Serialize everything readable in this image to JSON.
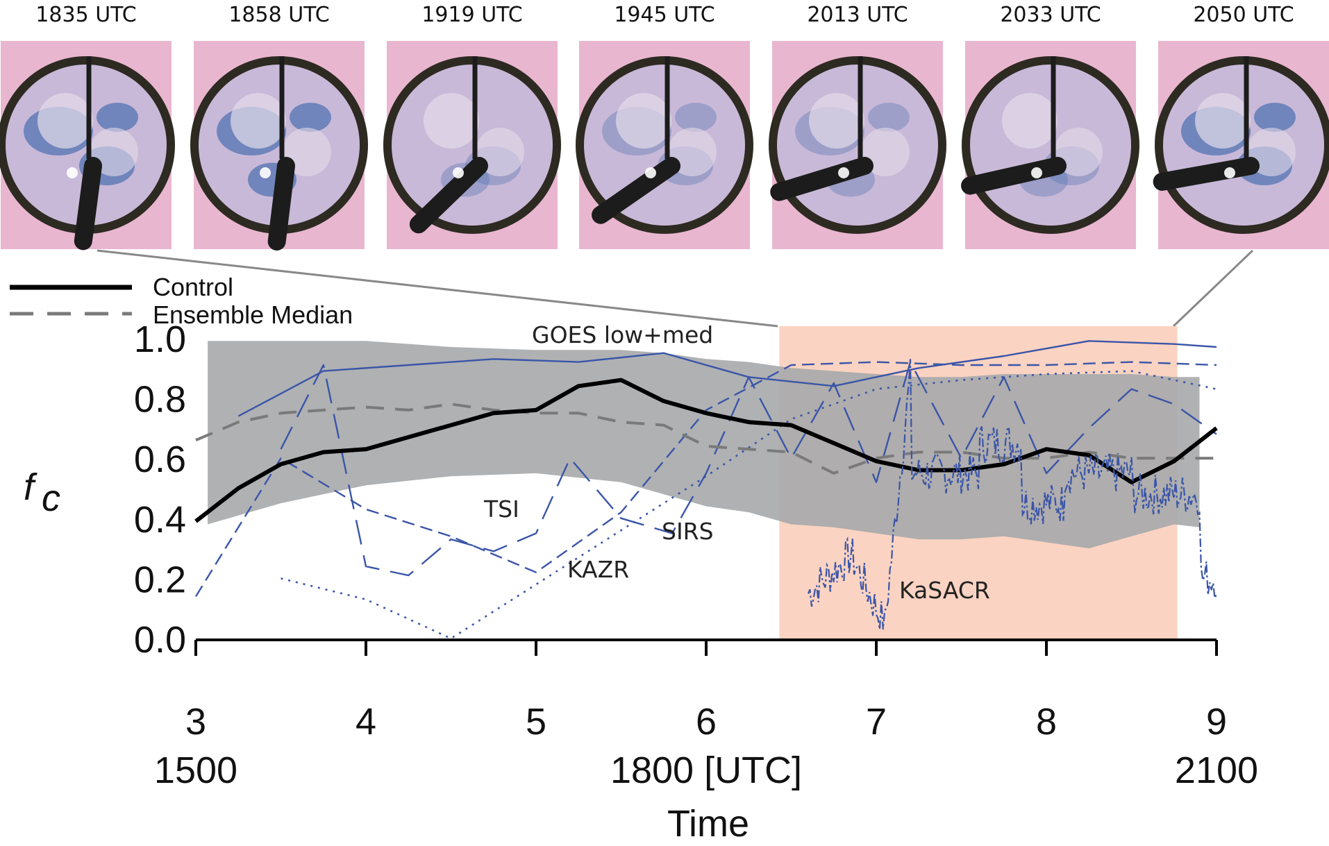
{
  "thumbnails": {
    "labels": [
      "1835 UTC",
      "1858 UTC",
      "1919 UTC",
      "1945 UTC",
      "2013 UTC",
      "2033 UTC",
      "2050 UTC"
    ],
    "colors": {
      "frame": "#e9b6cf",
      "ring": "#2d2a22",
      "sky": "#c9b9d8",
      "sky_blue": "#4a6fb0",
      "cloud": "#e4dbe9",
      "arm": "#1c1c1c"
    }
  },
  "legend": {
    "control_label": "Control",
    "median_label": "Ensemble Median"
  },
  "series_labels": {
    "goes": "GOES low+med",
    "tsi": "TSI",
    "sirs": "SIRS",
    "kazr": "KAZR",
    "kasacr": "KaSACR"
  },
  "colors": {
    "control": "#000000",
    "median": "#7a7a7a",
    "envelope": "#a6a8ab",
    "observations": "#3a55a8",
    "highlight": "#fbd3c2",
    "connector": "#888888"
  },
  "chart_data": {
    "type": "line",
    "title": "",
    "ylabel_main": "f",
    "ylabel_sub": "c",
    "xlabel": "Time",
    "xlim": [
      3,
      9
    ],
    "ylim": [
      0,
      1
    ],
    "y_ticks": [
      0.0,
      0.2,
      0.4,
      0.6,
      0.8,
      1.0
    ],
    "y_tick_labels": [
      "0.0",
      "0.2",
      "0.4",
      "0.6",
      "0.8",
      "1.0"
    ],
    "x_ticks": [
      3,
      4,
      5,
      6,
      7,
      8,
      9
    ],
    "x_tick_labels": [
      "3",
      "4",
      "5",
      "6",
      "7",
      "8",
      "9"
    ],
    "utc_labels": [
      {
        "x": 3,
        "label": "1500"
      },
      {
        "x": 6,
        "label": "1800 [UTC]"
      },
      {
        "x": 9,
        "label": "2100"
      }
    ],
    "highlight_range": [
      6.43,
      8.77
    ],
    "envelope": {
      "upper": [
        [
          3.07,
          0.99
        ],
        [
          3.5,
          0.99
        ],
        [
          4.0,
          0.99
        ],
        [
          4.5,
          0.97
        ],
        [
          5.0,
          0.96
        ],
        [
          5.5,
          0.96
        ],
        [
          5.75,
          0.95
        ],
        [
          6.0,
          0.93
        ],
        [
          6.25,
          0.92
        ],
        [
          6.5,
          0.9
        ],
        [
          6.75,
          0.89
        ],
        [
          7.0,
          0.88
        ],
        [
          7.25,
          0.87
        ],
        [
          7.5,
          0.87
        ],
        [
          7.75,
          0.88
        ],
        [
          8.0,
          0.88
        ],
        [
          8.25,
          0.88
        ],
        [
          8.5,
          0.88
        ],
        [
          8.75,
          0.87
        ],
        [
          8.9,
          0.87
        ]
      ],
      "lower": [
        [
          8.9,
          0.37
        ],
        [
          8.75,
          0.38
        ],
        [
          8.5,
          0.34
        ],
        [
          8.25,
          0.3
        ],
        [
          8.0,
          0.32
        ],
        [
          7.75,
          0.34
        ],
        [
          7.5,
          0.33
        ],
        [
          7.25,
          0.33
        ],
        [
          7.0,
          0.35
        ],
        [
          6.75,
          0.37
        ],
        [
          6.5,
          0.38
        ],
        [
          6.25,
          0.42
        ],
        [
          6.0,
          0.44
        ],
        [
          5.5,
          0.52
        ],
        [
          5.0,
          0.55
        ],
        [
          4.5,
          0.54
        ],
        [
          4.0,
          0.51
        ],
        [
          3.5,
          0.45
        ],
        [
          3.07,
          0.38
        ]
      ]
    },
    "series": [
      {
        "key": "control",
        "points": [
          [
            3.0,
            0.39
          ],
          [
            3.25,
            0.5
          ],
          [
            3.5,
            0.58
          ],
          [
            3.75,
            0.62
          ],
          [
            4.0,
            0.63
          ],
          [
            4.25,
            0.67
          ],
          [
            4.5,
            0.71
          ],
          [
            4.75,
            0.75
          ],
          [
            5.0,
            0.76
          ],
          [
            5.25,
            0.84
          ],
          [
            5.5,
            0.86
          ],
          [
            5.75,
            0.79
          ],
          [
            6.0,
            0.75
          ],
          [
            6.25,
            0.72
          ],
          [
            6.5,
            0.71
          ],
          [
            6.75,
            0.65
          ],
          [
            7.0,
            0.59
          ],
          [
            7.25,
            0.56
          ],
          [
            7.5,
            0.56
          ],
          [
            7.75,
            0.58
          ],
          [
            8.0,
            0.63
          ],
          [
            8.25,
            0.61
          ],
          [
            8.5,
            0.52
          ],
          [
            8.75,
            0.59
          ],
          [
            9.0,
            0.7
          ]
        ]
      },
      {
        "key": "median",
        "points": [
          [
            3.0,
            0.66
          ],
          [
            3.25,
            0.72
          ],
          [
            3.5,
            0.75
          ],
          [
            3.75,
            0.76
          ],
          [
            4.0,
            0.77
          ],
          [
            4.25,
            0.76
          ],
          [
            4.5,
            0.78
          ],
          [
            4.75,
            0.76
          ],
          [
            5.0,
            0.75
          ],
          [
            5.25,
            0.75
          ],
          [
            5.5,
            0.72
          ],
          [
            5.75,
            0.71
          ],
          [
            6.0,
            0.64
          ],
          [
            6.25,
            0.63
          ],
          [
            6.5,
            0.62
          ],
          [
            6.75,
            0.55
          ],
          [
            7.0,
            0.6
          ],
          [
            7.25,
            0.62
          ],
          [
            7.5,
            0.62
          ],
          [
            7.75,
            0.6
          ],
          [
            8.0,
            0.6
          ],
          [
            8.25,
            0.62
          ],
          [
            8.5,
            0.6
          ],
          [
            8.75,
            0.6
          ],
          [
            9.0,
            0.6
          ]
        ]
      },
      {
        "key": "goes",
        "points": [
          [
            3.25,
            0.74
          ],
          [
            3.75,
            0.89
          ],
          [
            4.25,
            0.91
          ],
          [
            4.75,
            0.93
          ],
          [
            5.25,
            0.92
          ],
          [
            5.75,
            0.95
          ],
          [
            6.25,
            0.87
          ],
          [
            6.75,
            0.84
          ],
          [
            7.25,
            0.9
          ],
          [
            7.75,
            0.94
          ],
          [
            8.25,
            0.99
          ],
          [
            8.75,
            0.98
          ],
          [
            9.0,
            0.97
          ]
        ]
      },
      {
        "key": "tsi",
        "points": [
          [
            3.0,
            0.14
          ],
          [
            3.5,
            0.6
          ],
          [
            4.0,
            0.43
          ],
          [
            4.5,
            0.34
          ],
          [
            5.0,
            0.22
          ],
          [
            5.5,
            0.42
          ],
          [
            6.0,
            0.76
          ],
          [
            6.5,
            0.91
          ],
          [
            7.0,
            0.92
          ],
          [
            7.5,
            0.91
          ],
          [
            8.0,
            0.91
          ],
          [
            8.5,
            0.92
          ],
          [
            9.0,
            0.91
          ]
        ]
      },
      {
        "key": "sirs",
        "points": [
          [
            3.5,
            0.63
          ],
          [
            3.75,
            0.91
          ],
          [
            4.0,
            0.24
          ],
          [
            4.25,
            0.21
          ],
          [
            4.5,
            0.33
          ],
          [
            4.75,
            0.29
          ],
          [
            5.0,
            0.35
          ],
          [
            5.2,
            0.6
          ],
          [
            5.5,
            0.4
          ],
          [
            5.8,
            0.35
          ],
          [
            6.0,
            0.55
          ],
          [
            6.25,
            0.87
          ],
          [
            6.5,
            0.6
          ],
          [
            6.75,
            0.85
          ],
          [
            7.0,
            0.52
          ],
          [
            7.2,
            0.92
          ],
          [
            7.5,
            0.6
          ],
          [
            7.75,
            0.87
          ],
          [
            8.0,
            0.55
          ],
          [
            8.25,
            0.7
          ],
          [
            8.5,
            0.83
          ],
          [
            8.75,
            0.78
          ],
          [
            9.0,
            0.68
          ]
        ]
      },
      {
        "key": "kazr",
        "points": [
          [
            3.5,
            0.2
          ],
          [
            4.0,
            0.13
          ],
          [
            4.5,
            0.0
          ],
          [
            5.0,
            0.18
          ],
          [
            5.5,
            0.36
          ],
          [
            6.0,
            0.54
          ],
          [
            6.5,
            0.73
          ],
          [
            7.0,
            0.83
          ],
          [
            7.5,
            0.86
          ],
          [
            8.0,
            0.88
          ],
          [
            8.5,
            0.89
          ],
          [
            8.75,
            0.86
          ],
          [
            9.0,
            0.83
          ]
        ]
      }
    ]
  }
}
